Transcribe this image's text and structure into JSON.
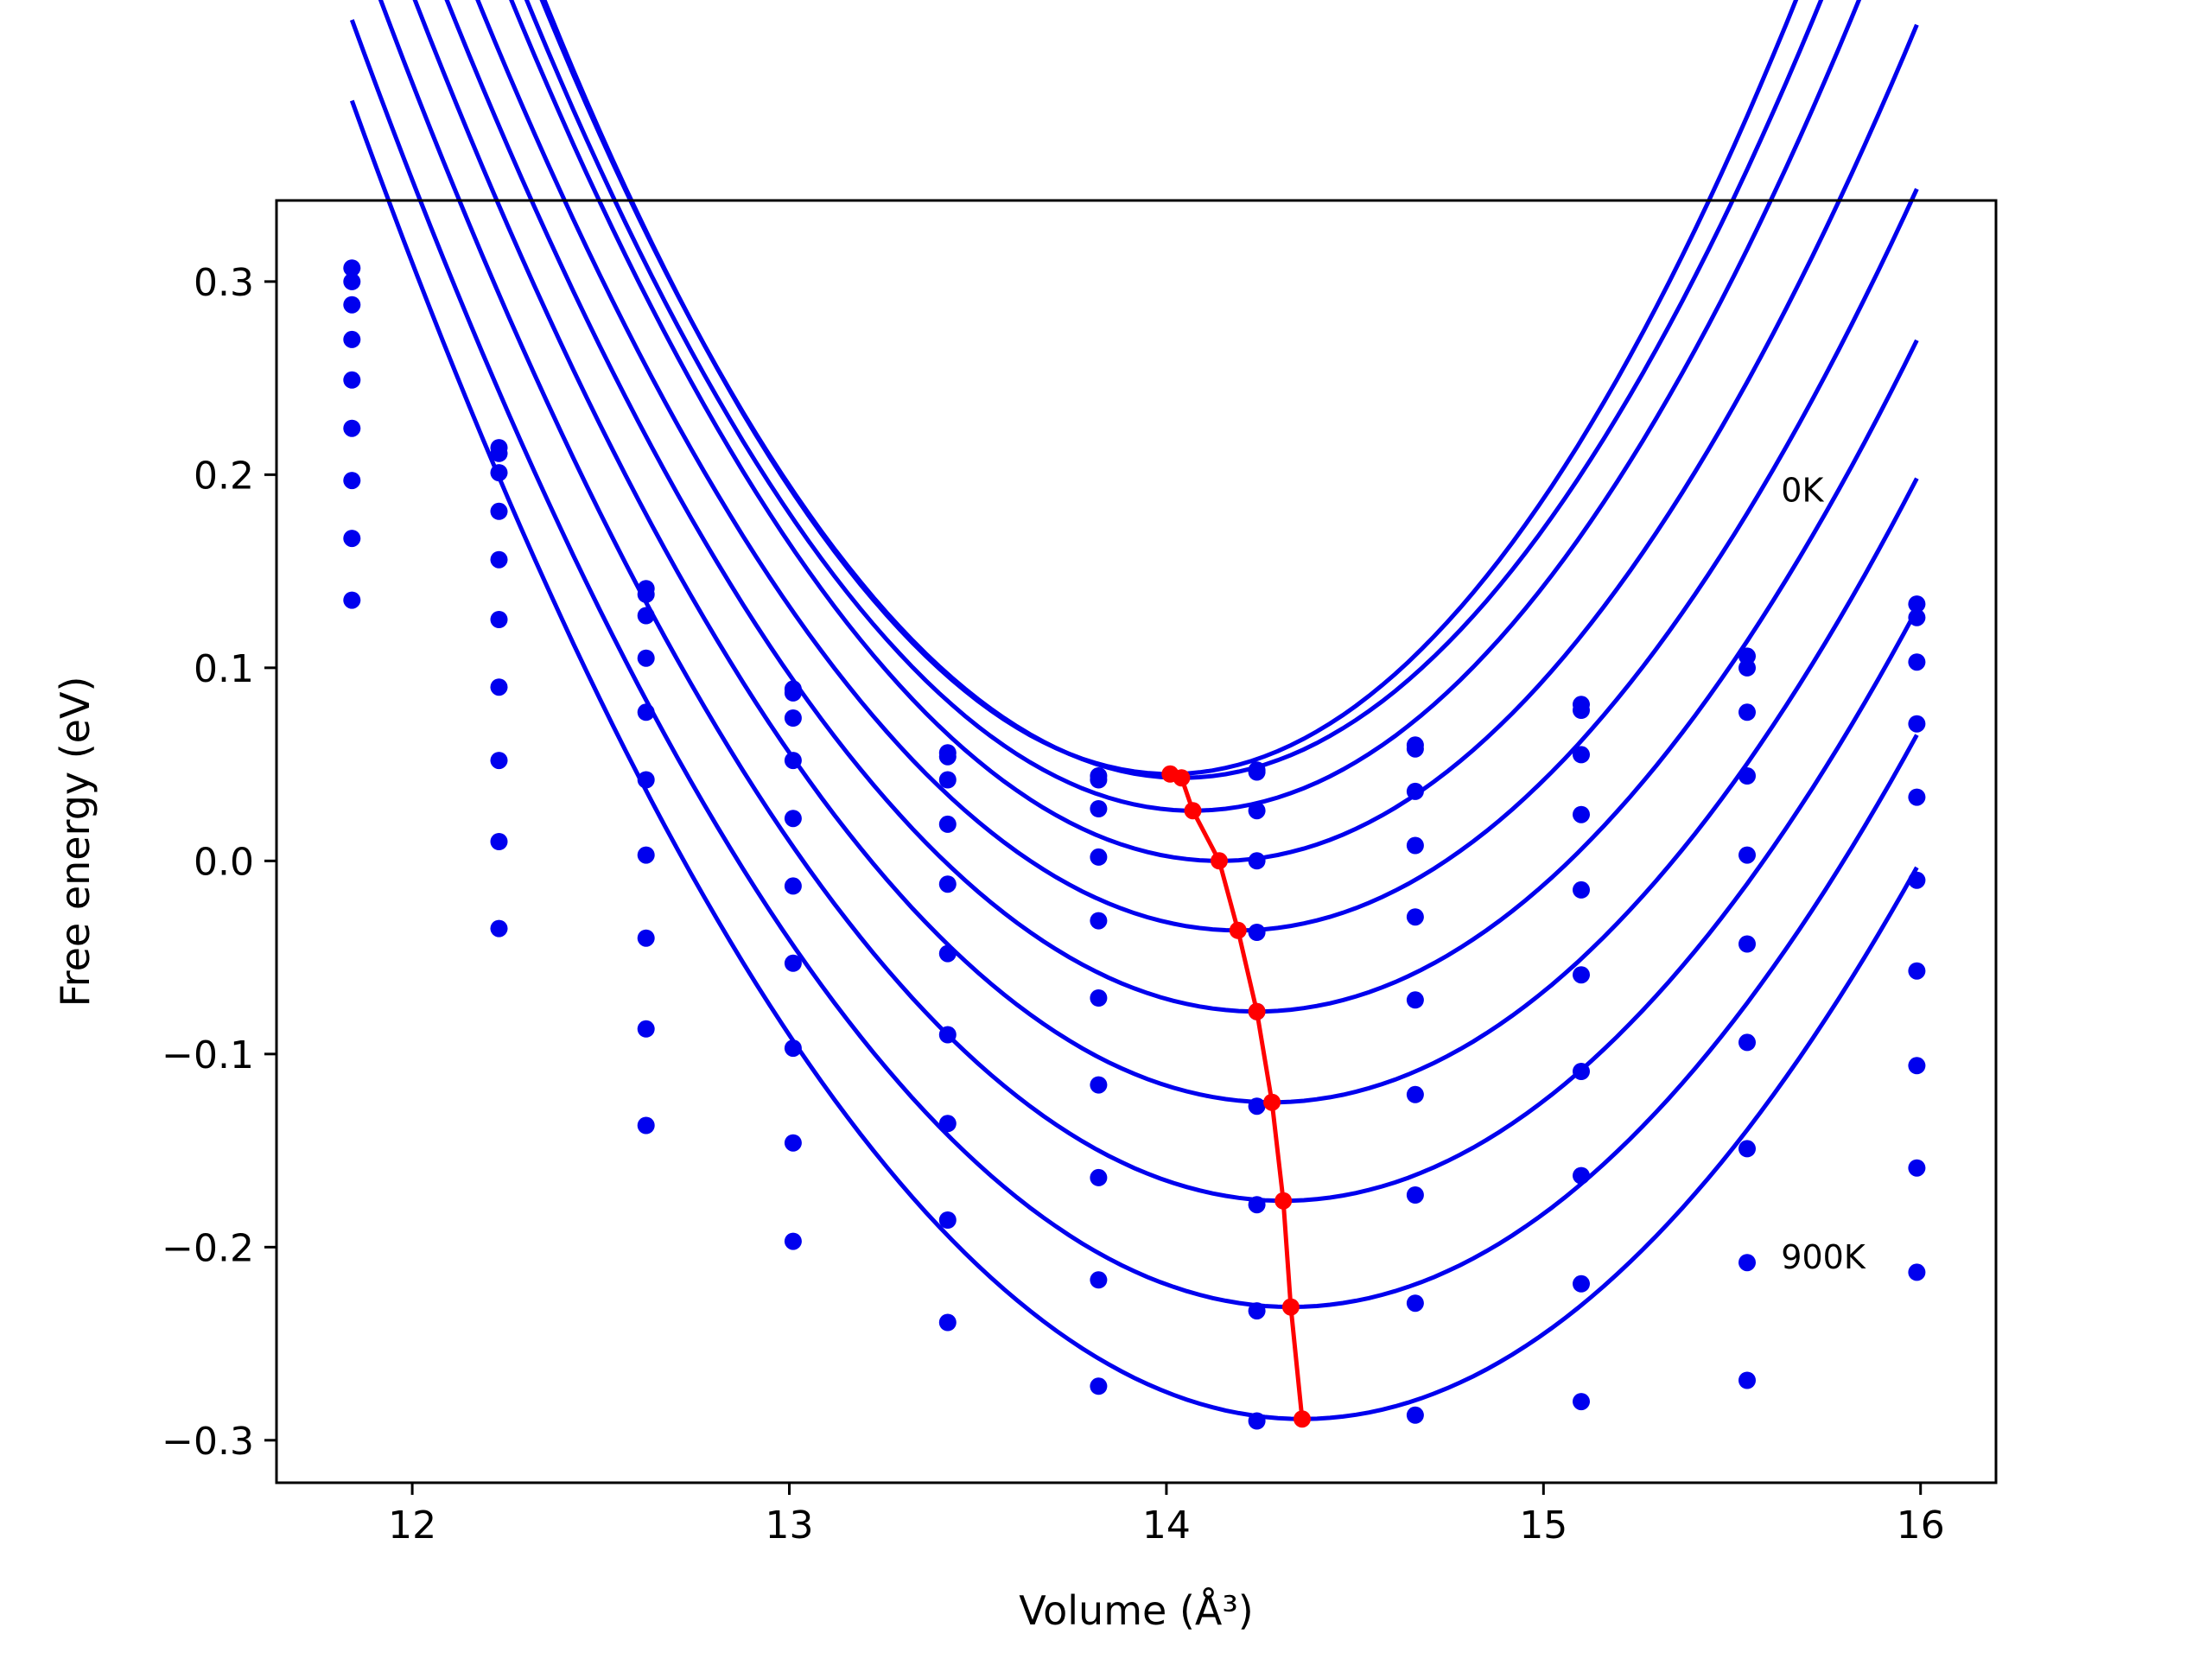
{
  "chart_data": {
    "type": "line",
    "title": "",
    "xlabel": "Volume (Å³)",
    "ylabel": "Free energy (eV)",
    "xlim": [
      11.64,
      16.2
    ],
    "ylim": [
      -0.322,
      0.342
    ],
    "x_ticks": [
      {
        "value": 12,
        "label": "12"
      },
      {
        "value": 13,
        "label": "13"
      },
      {
        "value": 14,
        "label": "14"
      },
      {
        "value": 15,
        "label": "15"
      },
      {
        "value": 16,
        "label": "16"
      }
    ],
    "y_ticks": [
      {
        "value": 0.3,
        "label": "0.3"
      },
      {
        "value": 0.2,
        "label": "0.2"
      },
      {
        "value": 0.1,
        "label": "0.1"
      },
      {
        "value": 0.0,
        "label": "0.0"
      },
      {
        "value": -0.1,
        "label": "−0.1"
      },
      {
        "value": -0.2,
        "label": "−0.2"
      },
      {
        "value": -0.3,
        "label": "−0.3"
      }
    ],
    "grid": false,
    "annotations": [
      {
        "text": "0K",
        "x": 15.63,
        "y": 0.186
      },
      {
        "text": "900K",
        "x": 15.63,
        "y": -0.211
      }
    ],
    "colors": {
      "series": "#0000ee",
      "minima": "#ff0000"
    },
    "volumes": [
      11.84,
      12.23,
      12.62,
      13.01,
      13.42,
      13.82,
      14.24,
      14.66,
      15.1,
      15.54,
      15.99
    ],
    "series": [
      {
        "values": [
          0.307,
          0.214,
          0.141,
          0.089,
          0.056,
          0.044,
          0.047,
          0.06,
          0.081,
          0.106,
          0.133
        ],
        "fit": {
          "v0": 14.01,
          "e0": 0.045,
          "k": 0.1455
        }
      },
      {
        "values": [
          0.3,
          0.211,
          0.138,
          0.087,
          0.054,
          0.042,
          0.046,
          0.058,
          0.078,
          0.1,
          0.126
        ],
        "fit": {
          "v0": 14.04,
          "e0": 0.043,
          "k": 0.14
        }
      },
      {
        "values": [
          0.288,
          0.201,
          0.127,
          0.074,
          0.042,
          0.027,
          0.026,
          0.036,
          0.055,
          0.077,
          0.103
        ],
        "fit": {
          "v0": 14.07,
          "e0": 0.026,
          "k": 0.1345
        }
      },
      {
        "values": [
          0.27,
          0.181,
          0.105,
          0.052,
          0.019,
          0.002,
          0.0,
          0.008,
          0.024,
          0.044,
          0.071
        ],
        "fit": {
          "v0": 14.14,
          "e0": 0.0,
          "k": 0.1265
        }
      },
      {
        "values": [
          0.249,
          0.156,
          0.077,
          0.022,
          -0.012,
          -0.031,
          -0.037,
          -0.029,
          -0.015,
          0.003,
          0.033
        ],
        "fit": {
          "v0": 14.19,
          "e0": -0.036,
          "k": 0.1185
        }
      },
      {
        "values": [
          0.224,
          0.125,
          0.042,
          -0.013,
          -0.048,
          -0.071,
          -0.078,
          -0.072,
          -0.059,
          -0.043,
          -0.01
        ],
        "fit": {
          "v0": 14.24,
          "e0": -0.078,
          "k": 0.1135
        }
      },
      {
        "values": [
          0.197,
          0.09,
          0.003,
          -0.053,
          -0.09,
          -0.116,
          -0.127,
          -0.121,
          -0.109,
          -0.094,
          -0.057
        ],
        "fit": {
          "v0": 14.28,
          "e0": -0.125,
          "k": 0.1105
        }
      },
      {
        "values": [
          0.167,
          0.052,
          -0.04,
          -0.097,
          -0.136,
          -0.164,
          -0.178,
          -0.173,
          -0.163,
          -0.149,
          -0.106
        ],
        "fit": {
          "v0": 14.31,
          "e0": -0.176,
          "k": 0.1085
        }
      },
      {
        "values": [
          0.135,
          0.01,
          -0.087,
          -0.146,
          -0.186,
          -0.217,
          -0.233,
          -0.229,
          -0.219,
          -0.208,
          -0.159
        ],
        "fit": {
          "v0": 14.33,
          "e0": -0.231,
          "k": 0.1075
        }
      },
      {
        "values": [
          null,
          -0.035,
          -0.137,
          -0.197,
          -0.239,
          -0.272,
          -0.29,
          -0.287,
          -0.28,
          -0.269,
          -0.213
        ],
        "fit": {
          "v0": 14.36,
          "e0": -0.289,
          "k": 0.1075
        }
      }
    ],
    "minima_line": {
      "x": [
        14.01,
        14.04,
        14.07,
        14.14,
        14.19,
        14.24,
        14.28,
        14.31,
        14.33,
        14.36
      ],
      "y": [
        0.045,
        0.043,
        0.026,
        0.0,
        -0.036,
        -0.078,
        -0.125,
        -0.176,
        -0.231,
        -0.289
      ]
    }
  }
}
